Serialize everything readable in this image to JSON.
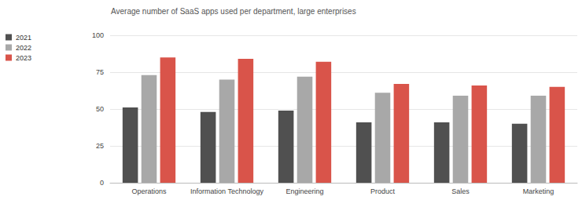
{
  "chart_data": {
    "type": "bar",
    "title": "Average number of SaaS apps used per department, large enterprises",
    "categories": [
      "Operations",
      "Information Technology",
      "Engineering",
      "Product",
      "Sales",
      "Marketing"
    ],
    "series": [
      {
        "name": "2021",
        "color": "#505050",
        "values": [
          51,
          48,
          49,
          41,
          41,
          40
        ]
      },
      {
        "name": "2022",
        "color": "#a8a8a8",
        "values": [
          73,
          70,
          72,
          61,
          59,
          59
        ]
      },
      {
        "name": "2023",
        "color": "#d9544a",
        "values": [
          85,
          84,
          82,
          67,
          66,
          65
        ]
      }
    ],
    "ylim": [
      0,
      100
    ],
    "yticks": [
      0,
      25,
      50,
      75,
      100
    ],
    "grid": true,
    "legend": "top-left"
  }
}
